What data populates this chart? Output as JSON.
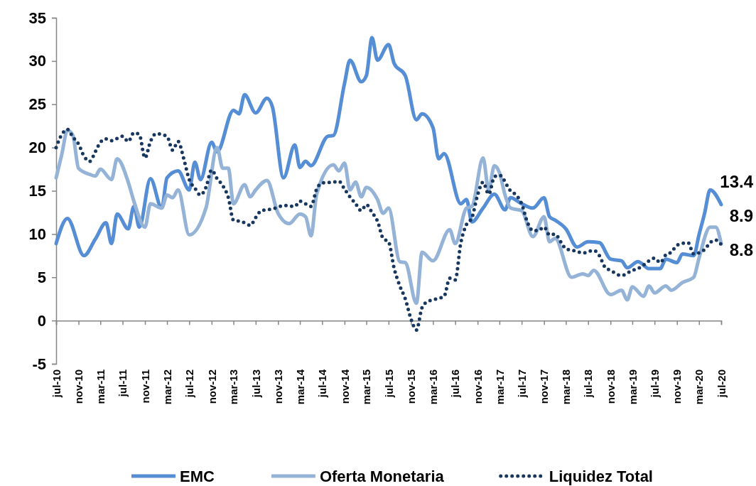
{
  "chart_data": {
    "type": "line",
    "legend": "bottom",
    "ylim": [
      -5,
      35
    ],
    "yticks": [
      -5,
      0,
      5,
      10,
      15,
      20,
      25,
      30,
      35
    ],
    "xlim": [
      "2010-07",
      "2020-07"
    ],
    "xticks": [
      {
        "value": "2010-07",
        "label": "jul-10"
      },
      {
        "value": "2010-11",
        "label": "nov-10"
      },
      {
        "value": "2011-03",
        "label": "mar-11"
      },
      {
        "value": "2011-07",
        "label": "jul-11"
      },
      {
        "value": "2011-11",
        "label": "nov-11"
      },
      {
        "value": "2012-03",
        "label": "mar-12"
      },
      {
        "value": "2012-07",
        "label": "jul-12"
      },
      {
        "value": "2012-11",
        "label": "nov-12"
      },
      {
        "value": "2013-03",
        "label": "mar-13"
      },
      {
        "value": "2013-07",
        "label": "jul-13"
      },
      {
        "value": "2013-11",
        "label": "nov-13"
      },
      {
        "value": "2014-03",
        "label": "mar-14"
      },
      {
        "value": "2014-07",
        "label": "jul-14"
      },
      {
        "value": "2014-11",
        "label": "nov-14"
      },
      {
        "value": "2015-03",
        "label": "mar-15"
      },
      {
        "value": "2015-07",
        "label": "jul-15"
      },
      {
        "value": "2015-11",
        "label": "nov-15"
      },
      {
        "value": "2016-03",
        "label": "mar-16"
      },
      {
        "value": "2016-07",
        "label": "jul-16"
      },
      {
        "value": "2016-11",
        "label": "nov-16"
      },
      {
        "value": "2017-03",
        "label": "mar-17"
      },
      {
        "value": "2017-07",
        "label": "jul-17"
      },
      {
        "value": "2017-11",
        "label": "nov-17"
      },
      {
        "value": "2018-03",
        "label": "mar-18"
      },
      {
        "value": "2018-07",
        "label": "jul-18"
      },
      {
        "value": "2018-11",
        "label": "nov-18"
      },
      {
        "value": "2019-03",
        "label": "mar-19"
      },
      {
        "value": "2019-07",
        "label": "jul-19"
      },
      {
        "value": "2019-11",
        "label": "nov-19"
      },
      {
        "value": "2020-03",
        "label": "mar-20"
      },
      {
        "value": "2020-07",
        "label": "jul-20"
      }
    ],
    "annotations": [
      {
        "text": "13.4",
        "x": "2020-07",
        "y": 13.4
      },
      {
        "text": "8.9",
        "x": "2020-07",
        "y": 8.9
      },
      {
        "text": "8.8",
        "x": "2020-07",
        "y": 8.8
      }
    ],
    "series": [
      {
        "name": "EMC",
        "color": "#558ed5",
        "line_style": "solid",
        "x": [
          "2010-07",
          "2010-09",
          "2010-12",
          "2011-02",
          "2011-04",
          "2011-05",
          "2011-06",
          "2011-08",
          "2011-09",
          "2011-10",
          "2011-12",
          "2012-02",
          "2012-03",
          "2012-05",
          "2012-07",
          "2012-08",
          "2012-09",
          "2012-11",
          "2012-12",
          "2013-03",
          "2013-04",
          "2013-05",
          "2013-07",
          "2013-09",
          "2013-10",
          "2013-12",
          "2014-02",
          "2014-03",
          "2014-04",
          "2014-05",
          "2014-08",
          "2014-09",
          "2014-11",
          "2014-12",
          "2015-02",
          "2015-03",
          "2015-04",
          "2015-05",
          "2015-07",
          "2015-08",
          "2015-10",
          "2015-12",
          "2016-01",
          "2016-03",
          "2016-04",
          "2016-05",
          "2016-08",
          "2016-09",
          "2016-10",
          "2016-12",
          "2017-02",
          "2017-04",
          "2017-05",
          "2017-07",
          "2017-09",
          "2017-11",
          "2017-12",
          "2018-01",
          "2018-03",
          "2018-05",
          "2018-07",
          "2018-09",
          "2018-11",
          "2019-01",
          "2019-02",
          "2019-04",
          "2019-06",
          "2019-08",
          "2019-09",
          "2019-11",
          "2019-12",
          "2020-02",
          "2020-03",
          "2020-04",
          "2020-05",
          "2020-07"
        ],
        "values": [
          8.9,
          11.8,
          7.5,
          9.4,
          11.3,
          8.9,
          12.3,
          10.6,
          13.2,
          10.8,
          16.4,
          13,
          16.5,
          17.3,
          15.1,
          18.3,
          16.3,
          20.6,
          19.5,
          24.3,
          23.9,
          26.1,
          24,
          25.7,
          24.7,
          16.5,
          20.3,
          17.7,
          18.4,
          17.9,
          21.3,
          21.4,
          27.4,
          30.1,
          27.6,
          28.3,
          32.7,
          30.1,
          31.9,
          29.7,
          28.3,
          23.2,
          23.9,
          22.3,
          18.7,
          19.3,
          13.5,
          14,
          11.4,
          13,
          14.6,
          12.8,
          14.2,
          13.5,
          13,
          14.2,
          12,
          11.6,
          10.6,
          8.5,
          9.1,
          9,
          7.1,
          6.9,
          6.1,
          6.8,
          6,
          6,
          7.1,
          6.7,
          7.7,
          7.5,
          9.9,
          12.4,
          15.1,
          13.4
        ]
      },
      {
        "name": "Oferta Monetaria",
        "color": "#95b3d7",
        "line_style": "solid",
        "x": [
          "2010-07",
          "2010-08",
          "2010-09",
          "2010-10",
          "2010-11",
          "2011-01",
          "2011-02",
          "2011-03",
          "2011-05",
          "2011-06",
          "2011-08",
          "2011-09",
          "2011-11",
          "2011-12",
          "2012-02",
          "2012-03",
          "2012-04",
          "2012-05",
          "2012-07",
          "2012-10",
          "2012-12",
          "2013-01",
          "2013-02",
          "2013-03",
          "2013-05",
          "2013-06",
          "2013-07",
          "2013-09",
          "2013-11",
          "2014-01",
          "2014-03",
          "2014-04",
          "2014-05",
          "2014-06",
          "2014-09",
          "2014-10",
          "2014-11",
          "2014-12",
          "2015-01",
          "2015-02",
          "2015-03",
          "2015-05",
          "2015-06",
          "2015-07",
          "2015-09",
          "2015-10",
          "2015-12",
          "2016-01",
          "2016-03",
          "2016-06",
          "2016-07",
          "2016-09",
          "2016-10",
          "2016-12",
          "2017-01",
          "2017-02",
          "2017-03",
          "2017-04",
          "2017-05",
          "2017-07",
          "2017-09",
          "2017-11",
          "2017-12",
          "2018-01",
          "2018-04",
          "2018-06",
          "2018-07",
          "2018-08",
          "2018-11",
          "2019-01",
          "2019-02",
          "2019-03",
          "2019-05",
          "2019-06",
          "2019-07",
          "2019-09",
          "2019-10",
          "2019-12",
          "2020-02",
          "2020-03",
          "2020-05",
          "2020-06",
          "2020-07"
        ],
        "values": [
          16.5,
          19.2,
          22,
          21.4,
          17.6,
          16.9,
          16.7,
          17.5,
          16.3,
          18.7,
          16,
          13.8,
          10.8,
          13.5,
          13,
          14.5,
          14.2,
          15.1,
          9.9,
          13,
          20,
          17.6,
          17.6,
          13.5,
          15.7,
          14.3,
          15.1,
          16.2,
          12.4,
          11.2,
          12.3,
          12,
          9.8,
          14.6,
          18,
          17.3,
          18.2,
          15.1,
          16,
          14.3,
          15.4,
          14,
          12.4,
          13,
          6.8,
          6.7,
          2,
          7.9,
          6.9,
          10.5,
          8.9,
          13,
          13.2,
          18.8,
          15.1,
          17.9,
          17.1,
          14.5,
          13,
          12.7,
          9.7,
          12,
          9.1,
          9.5,
          5,
          5.4,
          5.2,
          5.8,
          3,
          3.5,
          2.4,
          3.9,
          2.8,
          4,
          3.2,
          4,
          3.5,
          4.4,
          5,
          7.2,
          10.8,
          10.8,
          8.9
        ]
      },
      {
        "name": "Liquidez Total",
        "color": "#17375e",
        "line_style": "dotted",
        "x": [
          "2010-07",
          "2010-08",
          "2010-09",
          "2010-10",
          "2010-11",
          "2010-12",
          "2011-01",
          "2011-02",
          "2011-03",
          "2011-04",
          "2011-05",
          "2011-07",
          "2011-08",
          "2011-09",
          "2011-10",
          "2011-11",
          "2011-12",
          "2012-01",
          "2012-03",
          "2012-04",
          "2012-05",
          "2012-06",
          "2012-07",
          "2012-08",
          "2012-09",
          "2012-10",
          "2012-11",
          "2012-12",
          "2013-01",
          "2013-02",
          "2013-03",
          "2013-04",
          "2013-05",
          "2013-06",
          "2013-07",
          "2013-08",
          "2013-10",
          "2013-11",
          "2013-12",
          "2014-02",
          "2014-03",
          "2014-04",
          "2014-05",
          "2014-06",
          "2014-07",
          "2014-09",
          "2014-10",
          "2014-11",
          "2014-12",
          "2015-01",
          "2015-02",
          "2015-03",
          "2015-04",
          "2015-05",
          "2015-06",
          "2015-07",
          "2015-08",
          "2015-09",
          "2015-10",
          "2015-11",
          "2015-12",
          "2016-01",
          "2016-02",
          "2016-03",
          "2016-05",
          "2016-06",
          "2016-07",
          "2016-08",
          "2016-09",
          "2016-10",
          "2016-11",
          "2016-12",
          "2017-01",
          "2017-02",
          "2017-03",
          "2017-05",
          "2017-06",
          "2017-07",
          "2017-08",
          "2017-09",
          "2017-10",
          "2017-11",
          "2017-12",
          "2018-01",
          "2018-02",
          "2018-03",
          "2018-05",
          "2018-06",
          "2018-08",
          "2018-09",
          "2018-10",
          "2018-11",
          "2019-01",
          "2019-03",
          "2019-04",
          "2019-05",
          "2019-07",
          "2019-08",
          "2019-09",
          "2019-10",
          "2019-11",
          "2020-01",
          "2020-02",
          "2020-04",
          "2020-05",
          "2020-06",
          "2020-07"
        ],
        "values": [
          20,
          21.5,
          22.1,
          21.2,
          20.4,
          19,
          18.4,
          19.5,
          20.6,
          21,
          20.8,
          21.3,
          20.7,
          21.7,
          21.5,
          18.8,
          20.7,
          21.6,
          21.3,
          19.7,
          20.7,
          18.7,
          16.3,
          15.3,
          14.5,
          15.4,
          17.4,
          16.4,
          15.6,
          14.2,
          11.6,
          11.5,
          11.3,
          11,
          11.9,
          12.7,
          12.9,
          13.1,
          13.3,
          13.2,
          13.8,
          13.5,
          13.2,
          15.2,
          15.9,
          16,
          16.1,
          15.2,
          14.3,
          13.5,
          12.7,
          13.4,
          12.5,
          11.5,
          9.5,
          9.1,
          6,
          4,
          2.5,
          0.2,
          -1.1,
          1.5,
          2.2,
          2.4,
          2.8,
          4.9,
          4.7,
          9,
          11.1,
          11.9,
          14.5,
          16,
          14.6,
          16.6,
          16.8,
          15,
          14.5,
          13.5,
          11.4,
          10.4,
          10.4,
          10.8,
          9.9,
          10,
          9.1,
          8.3,
          8,
          7.8,
          8.1,
          7.5,
          6.2,
          5.8,
          5.2,
          5.8,
          6,
          6.4,
          7.2,
          6.7,
          7.6,
          7.9,
          8.7,
          9,
          7.7,
          8.2,
          9,
          9.3,
          8.8
        ]
      }
    ]
  }
}
